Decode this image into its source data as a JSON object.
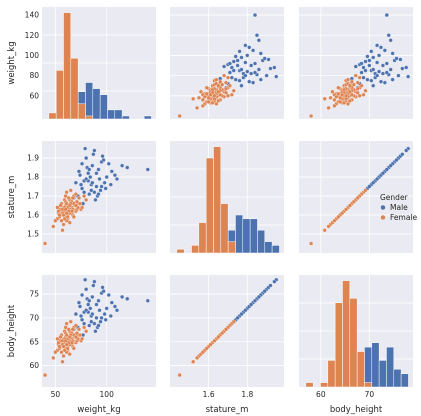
{
  "chart_data": {
    "type": "pairplot",
    "variables": [
      "weight_kg",
      "stature_m",
      "body_height"
    ],
    "axis_labels": {
      "weight_kg": "weight_kg",
      "stature_m": "stature_m",
      "body_height": "body_height"
    },
    "grid": true,
    "hue": "Gender",
    "legend": {
      "title": "Gender",
      "placement": "right",
      "entries": [
        "Male",
        "Female"
      ]
    },
    "colors": {
      "Male": "#4c72b0",
      "Female": "#dd8452",
      "panel": "#eaeaf2",
      "grid": "#ffffff"
    },
    "ranges": {
      "weight_kg": [
        37,
        148
      ],
      "stature_m": [
        1.4,
        1.99
      ],
      "body_height": [
        55.5,
        79.0
      ]
    },
    "ticks": {
      "weight_kg_y": [
        60,
        80,
        100,
        120,
        140
      ],
      "weight_kg_x": [
        50,
        100
      ],
      "stature_m_y": [
        1.5,
        1.6,
        1.7,
        1.8,
        1.9
      ],
      "stature_m_x": [
        1.6,
        1.8
      ],
      "body_height_y": [
        60,
        65,
        70,
        75
      ],
      "body_height_x": [
        60,
        70
      ]
    },
    "series": [
      {
        "name": "Male",
        "points": [
          [
            78,
            1.78
          ],
          [
            82,
            1.82
          ],
          [
            90,
            1.75
          ],
          [
            95,
            1.88
          ],
          [
            72,
            1.7
          ],
          [
            85,
            1.76
          ],
          [
            100,
            1.8
          ],
          [
            88,
            1.72
          ],
          [
            76,
            1.74
          ],
          [
            92,
            1.84
          ],
          [
            110,
            1.79
          ],
          [
            68,
            1.69
          ],
          [
            80,
            1.9
          ],
          [
            98,
            1.77
          ],
          [
            86,
            1.86
          ],
          [
            74,
            1.81
          ],
          [
            105,
            1.83
          ],
          [
            94,
            1.73
          ],
          [
            83,
            1.71
          ],
          [
            120,
            1.85
          ],
          [
            79,
            1.95
          ],
          [
            96,
            1.91
          ],
          [
            70,
            1.77
          ],
          [
            89,
            1.68
          ],
          [
            102,
            1.87
          ],
          [
            84,
            1.8
          ],
          [
            77,
            1.66
          ],
          [
            93,
            1.79
          ],
          [
            87,
            1.92
          ],
          [
            75,
            1.76
          ],
          [
            99,
            1.74
          ],
          [
            81,
            1.85
          ],
          [
            91,
            1.7
          ],
          [
            108,
            1.81
          ],
          [
            73,
            1.83
          ],
          [
            140,
            1.84
          ],
          [
            97,
            1.89
          ],
          [
            85,
            1.73
          ],
          [
            82,
            1.78
          ],
          [
            90,
            1.82
          ],
          [
            78,
            1.72
          ],
          [
            104,
            1.76
          ],
          [
            88,
            1.94
          ],
          [
            76,
            1.87
          ],
          [
            95,
            1.75
          ],
          [
            83,
            1.84
          ],
          [
            92,
            1.71
          ],
          [
            80,
            1.79
          ],
          [
            115,
            1.86
          ],
          [
            86,
            1.77
          ]
        ]
      },
      {
        "name": "Female",
        "points": [
          [
            55,
            1.6
          ],
          [
            62,
            1.63
          ],
          [
            58,
            1.55
          ],
          [
            65,
            1.67
          ],
          [
            70,
            1.62
          ],
          [
            52,
            1.58
          ],
          [
            60,
            1.65
          ],
          [
            68,
            1.7
          ],
          [
            57,
            1.52
          ],
          [
            63,
            1.61
          ],
          [
            72,
            1.66
          ],
          [
            50,
            1.57
          ],
          [
            66,
            1.64
          ],
          [
            59,
            1.68
          ],
          [
            75,
            1.63
          ],
          [
            54,
            1.59
          ],
          [
            61,
            1.72
          ],
          [
            67,
            1.6
          ],
          [
            56,
            1.62
          ],
          [
            64,
            1.56
          ],
          [
            69,
            1.66
          ],
          [
            53,
            1.61
          ],
          [
            73,
            1.69
          ],
          [
            58,
            1.64
          ],
          [
            62,
            1.58
          ],
          [
            48,
            1.54
          ],
          [
            66,
            1.61
          ],
          [
            60,
            1.67
          ],
          [
            71,
            1.63
          ],
          [
            57,
            1.6
          ],
          [
            65,
            1.73
          ],
          [
            63,
            1.65
          ],
          [
            55,
            1.63
          ],
          [
            68,
            1.59
          ],
          [
            59,
            1.62
          ],
          [
            74,
            1.66
          ],
          [
            61,
            1.57
          ],
          [
            64,
            1.68
          ],
          [
            52,
            1.64
          ],
          [
            67,
            1.62
          ],
          [
            70,
            1.71
          ],
          [
            56,
            1.66
          ],
          [
            62,
            1.6
          ],
          [
            58,
            1.62
          ],
          [
            66,
            1.67
          ],
          [
            76,
            1.64
          ],
          [
            53,
            1.62
          ],
          [
            60,
            1.59
          ],
          [
            64,
            1.63
          ],
          [
            69,
            1.65
          ],
          [
            57,
            1.61
          ],
          [
            63,
            1.69
          ],
          [
            72,
            1.64
          ],
          [
            59,
            1.58
          ],
          [
            65,
            1.62
          ],
          [
            40,
            1.45
          ],
          [
            78,
            1.7
          ],
          [
            61,
            1.66
          ],
          [
            67,
            1.63
          ],
          [
            55,
            1.65
          ],
          [
            62,
            1.64
          ],
          [
            58,
            1.6
          ],
          [
            68,
            1.66
          ],
          [
            64,
            1.61
          ],
          [
            60,
            1.7
          ],
          [
            66,
            1.62
          ],
          [
            54,
            1.6
          ],
          [
            70,
            1.65
          ],
          [
            63,
            1.62
          ],
          [
            59,
            1.64
          ],
          [
            80,
            1.68
          ],
          [
            57,
            1.63
          ],
          [
            65,
            1.66
          ],
          [
            61,
            1.61
          ],
          [
            67,
            1.69
          ],
          [
            62,
            1.59
          ],
          [
            56,
            1.57
          ],
          [
            71,
            1.67
          ],
          [
            64,
            1.65
          ],
          [
            60,
            1.63
          ]
        ]
      }
    ]
  }
}
